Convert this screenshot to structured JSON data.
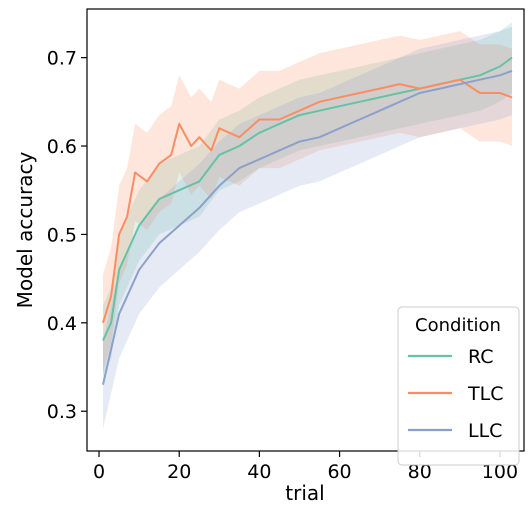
{
  "chart_data": {
    "type": "line",
    "xlabel": "trial",
    "ylabel": "Model accuracy",
    "xlim": [
      -3,
      106
    ],
    "ylim": [
      0.255,
      0.755
    ],
    "xticks": [
      0,
      20,
      40,
      60,
      80,
      100
    ],
    "yticks": [
      0.3,
      0.4,
      0.5,
      0.6,
      0.7
    ],
    "tick_labels_x": [
      "0",
      "20",
      "40",
      "60",
      "80",
      "100"
    ],
    "tick_labels_y": [
      "0.3",
      "0.4",
      "0.5",
      "0.6",
      "0.7"
    ],
    "grid": false,
    "legend": {
      "title": "Condition",
      "position": "bottom-right"
    },
    "series": [
      {
        "name": "RC",
        "color": "#66c2a5",
        "band": 0.04,
        "x": [
          1,
          3,
          5,
          7,
          10,
          15,
          20,
          25,
          30,
          35,
          40,
          45,
          50,
          55,
          60,
          65,
          70,
          75,
          80,
          85,
          90,
          95,
          100,
          103
        ],
        "values": [
          0.38,
          0.4,
          0.46,
          0.48,
          0.51,
          0.54,
          0.55,
          0.56,
          0.59,
          0.6,
          0.615,
          0.625,
          0.635,
          0.64,
          0.645,
          0.65,
          0.655,
          0.66,
          0.665,
          0.67,
          0.675,
          0.68,
          0.69,
          0.7
        ]
      },
      {
        "name": "TLC",
        "color": "#fc8d62",
        "band": 0.055,
        "x": [
          1,
          3,
          5,
          7,
          9,
          12,
          15,
          18,
          20,
          23,
          25,
          28,
          30,
          35,
          40,
          45,
          50,
          55,
          60,
          65,
          70,
          75,
          80,
          85,
          90,
          95,
          100,
          103
        ],
        "values": [
          0.4,
          0.43,
          0.5,
          0.52,
          0.57,
          0.56,
          0.58,
          0.59,
          0.625,
          0.6,
          0.61,
          0.595,
          0.62,
          0.61,
          0.63,
          0.63,
          0.64,
          0.65,
          0.655,
          0.66,
          0.665,
          0.67,
          0.665,
          0.67,
          0.675,
          0.66,
          0.66,
          0.655
        ]
      },
      {
        "name": "LLC",
        "color": "#8da0cb",
        "band": 0.05,
        "x": [
          1,
          3,
          5,
          7,
          10,
          15,
          20,
          25,
          30,
          35,
          40,
          45,
          50,
          55,
          60,
          65,
          70,
          75,
          80,
          85,
          90,
          95,
          100,
          103
        ],
        "values": [
          0.33,
          0.37,
          0.41,
          0.43,
          0.46,
          0.49,
          0.51,
          0.53,
          0.555,
          0.575,
          0.585,
          0.595,
          0.605,
          0.61,
          0.62,
          0.63,
          0.64,
          0.65,
          0.66,
          0.665,
          0.67,
          0.675,
          0.68,
          0.685
        ]
      }
    ]
  }
}
